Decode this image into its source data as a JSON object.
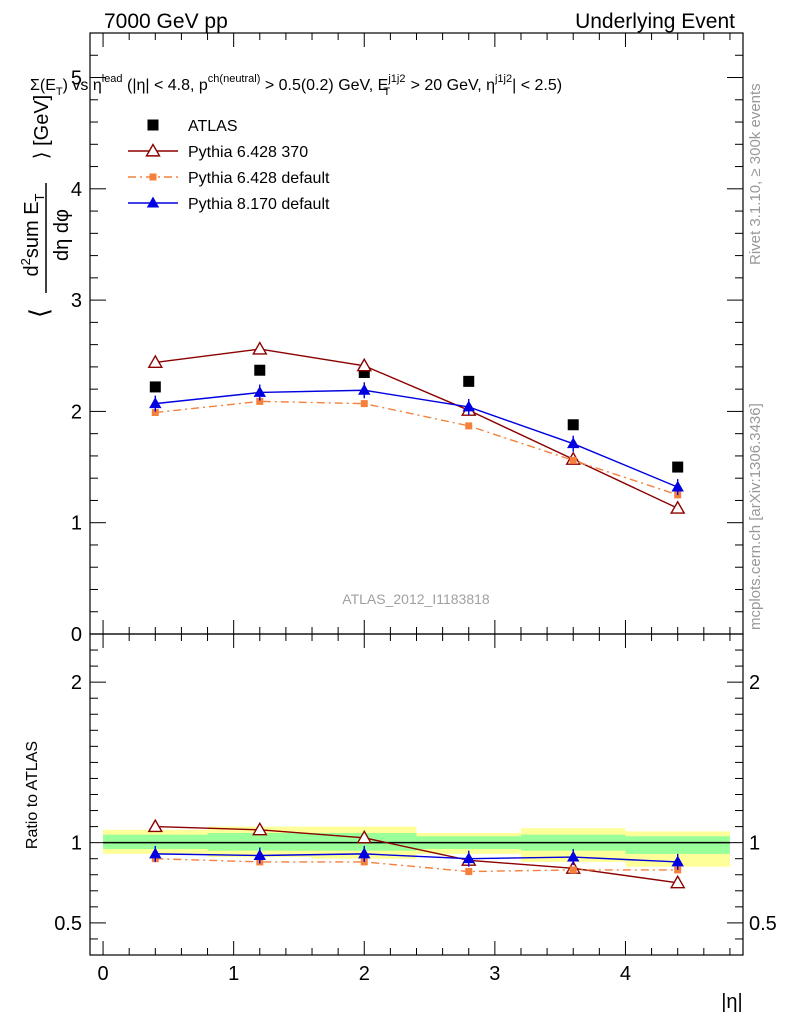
{
  "header": {
    "left": "7000 GeV pp",
    "right": "Underlying Event"
  },
  "side_text": {
    "rivet": "Rivet 3.1.10, ≥ 300k events",
    "mcplots": "mcplots.cern.ch [arXiv:1306.3436]"
  },
  "watermark": "ATLAS_2012_I1183818",
  "colors": {
    "atlas": "#000000",
    "py6_370": "#8b0000",
    "py6_def": "#f4803c",
    "py8": "#0000e0",
    "band_inner": "#99ff99",
    "band_outer": "#ffff99"
  },
  "chart_data": [
    {
      "type": "scatter",
      "panel": "main",
      "title": "Σ(E_T) vs η^lead (|η| < 4.8, p^ch(neutral) > 0.5(0.2) GeV, E_T^j1j2 > 20 GeV, η^j1j2| < 2.5)",
      "ylabel": "⟨ d²sum E_T / dη dφ ⟩ [GeV]",
      "xlim": [
        -0.1,
        4.9
      ],
      "ylim": [
        0,
        5.4
      ],
      "yticks": [
        0,
        1,
        2,
        3,
        4,
        5
      ],
      "x": [
        0.4,
        1.2,
        2.0,
        2.8,
        3.6,
        4.4
      ],
      "series": [
        {
          "name": "ATLAS",
          "marker": "square",
          "values": [
            2.22,
            2.37,
            2.35,
            2.27,
            1.88,
            1.5
          ]
        },
        {
          "name": "Pythia 6.428 370",
          "marker": "open-triangle",
          "values": [
            2.44,
            2.56,
            2.41,
            2.01,
            1.57,
            1.13
          ]
        },
        {
          "name": "Pythia 6.428 default",
          "marker": "small-square",
          "values": [
            1.99,
            2.09,
            2.07,
            1.87,
            1.56,
            1.25
          ]
        },
        {
          "name": "Pythia 8.170 default",
          "marker": "filled-triangle",
          "values": [
            2.07,
            2.17,
            2.19,
            2.04,
            1.71,
            1.32
          ]
        }
      ]
    },
    {
      "type": "scatter",
      "panel": "ratio",
      "xlabel": "|η|",
      "ylabel": "Ratio to ATLAS",
      "xlim": [
        -0.1,
        4.9
      ],
      "ylim": [
        0.3,
        2.3
      ],
      "xticks": [
        0,
        1,
        2,
        3,
        4
      ],
      "yticks": [
        0.5,
        1,
        2
      ],
      "x": [
        0.4,
        1.2,
        2.0,
        2.8,
        3.6,
        4.4
      ],
      "bands": {
        "edges": [
          0.0,
          0.8,
          1.6,
          2.4,
          3.2,
          4.0,
          4.8
        ],
        "inner": [
          [
            0.96,
            1.05
          ],
          [
            0.95,
            1.06
          ],
          [
            0.95,
            1.06
          ],
          [
            0.96,
            1.04
          ],
          [
            0.95,
            1.05
          ],
          [
            0.93,
            1.04
          ]
        ],
        "outer": [
          [
            0.93,
            1.08
          ],
          [
            0.91,
            1.1
          ],
          [
            0.9,
            1.1
          ],
          [
            0.93,
            1.06
          ],
          [
            0.88,
            1.09
          ],
          [
            0.85,
            1.07
          ]
        ]
      },
      "series": [
        {
          "name": "Pythia 6.428 370",
          "values": [
            1.1,
            1.08,
            1.03,
            0.89,
            0.84,
            0.75
          ]
        },
        {
          "name": "Pythia 6.428 default",
          "values": [
            0.9,
            0.88,
            0.88,
            0.82,
            0.83,
            0.83
          ]
        },
        {
          "name": "Pythia 8.170 default",
          "values": [
            0.93,
            0.92,
            0.93,
            0.9,
            0.91,
            0.88
          ]
        }
      ]
    }
  ]
}
